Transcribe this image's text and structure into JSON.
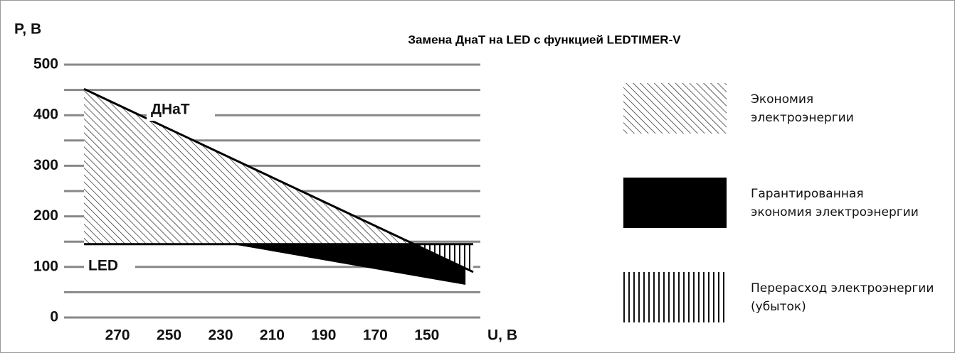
{
  "chart_data": {
    "type": "area-comparison",
    "title": "Замена ДнаТ на LED с функцией LEDTIMER-V",
    "y_label": "P, В",
    "x_label": "U, В",
    "xlim": [
      283,
      132
    ],
    "ylim": [
      0,
      500
    ],
    "xticks": [
      270,
      250,
      230,
      210,
      190,
      170,
      150
    ],
    "yticks": [
      0,
      100,
      200,
      300,
      400,
      500
    ],
    "minor_yticks": [
      50,
      150,
      250,
      350,
      450
    ],
    "grid": true,
    "series": [
      {
        "name": "ДНаТ",
        "color": "#000000",
        "x": [
          283,
          132
        ],
        "values": [
          452,
          90
        ]
      },
      {
        "name": "LED",
        "color": "#000000",
        "x": [
          283,
          132
        ],
        "values": [
          145,
          145
        ]
      },
      {
        "name": "LEDTIMER-V",
        "color": "#000000",
        "x": [
          224,
          135
        ],
        "values": [
          145,
          66
        ]
      }
    ],
    "legend": [
      {
        "pattern": "diagonal",
        "label": [
          "Экономия",
          "электроэнергии"
        ]
      },
      {
        "pattern": "solid",
        "label": [
          "Гарантированная",
          "экономия электроэнергии"
        ]
      },
      {
        "pattern": "vertical",
        "label": [
          "Перерасход электроэнергии",
          "(убыток)"
        ]
      }
    ]
  }
}
